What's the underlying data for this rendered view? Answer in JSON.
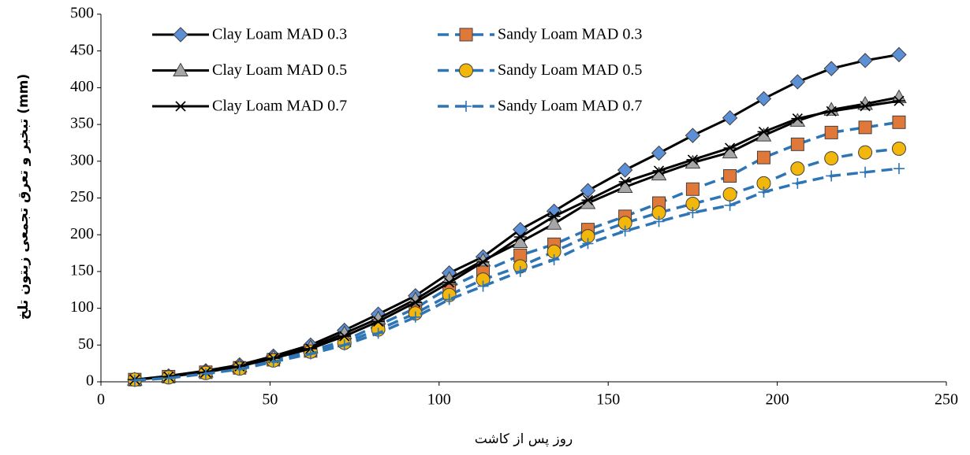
{
  "chart_data": {
    "type": "line",
    "x_label": "روز پس از کاشت",
    "y_label": "تبخیر و تعرق تجمعی زیتون تلخ (mm)",
    "x": [
      10,
      20,
      31,
      41,
      51,
      62,
      72,
      82,
      93,
      103,
      113,
      124,
      134,
      144,
      155,
      165,
      175,
      186,
      196,
      206,
      216,
      226,
      236
    ],
    "xlim": [
      0,
      250
    ],
    "xticks": [
      0,
      50,
      100,
      150,
      200,
      250
    ],
    "ylim": [
      0,
      500
    ],
    "yticks": [
      0,
      50,
      100,
      150,
      200,
      250,
      300,
      350,
      400,
      450,
      500
    ],
    "grid": false,
    "series": [
      {
        "name": "Clay Loam MAD 0.3",
        "color": "#000000",
        "marker": "diamond",
        "marker_color": "#5b8fd6",
        "dash": false,
        "values": [
          3,
          8,
          15,
          23,
          35,
          50,
          70,
          92,
          117,
          148,
          170,
          207,
          232,
          260,
          288,
          311,
          335,
          359,
          385,
          408,
          426,
          437,
          445
        ]
      },
      {
        "name": "Sandy Loam MAD 0.3",
        "color": "#2e75b6",
        "marker": "square",
        "marker_color": "#e0783a",
        "dash": true,
        "values": [
          3,
          7,
          13,
          19,
          30,
          42,
          56,
          77,
          100,
          128,
          150,
          172,
          187,
          207,
          225,
          243,
          262,
          280,
          305,
          323,
          339,
          346,
          353
        ]
      },
      {
        "name": "Clay Loam MAD 0.5",
        "color": "#000000",
        "marker": "triangle",
        "marker_color": "#a6a6a6",
        "dash": false,
        "values": [
          3,
          7,
          14,
          21,
          33,
          47,
          66,
          86,
          112,
          140,
          165,
          190,
          215,
          243,
          265,
          282,
          298,
          312,
          335,
          355,
          370,
          378,
          387
        ]
      },
      {
        "name": "Sandy Loam MAD 0.5",
        "color": "#2e75b6",
        "marker": "circle",
        "marker_color": "#f2b70a",
        "dash": true,
        "values": [
          3,
          6,
          12,
          18,
          29,
          41,
          53,
          71,
          93,
          118,
          139,
          157,
          177,
          198,
          216,
          230,
          242,
          255,
          270,
          290,
          304,
          312,
          317
        ]
      },
      {
        "name": "Clay Loam MAD 0.7",
        "color": "#000000",
        "marker": "star",
        "marker_color": "#000000",
        "dash": false,
        "values": [
          3,
          7,
          13,
          21,
          32,
          45,
          62,
          82,
          108,
          135,
          163,
          197,
          225,
          247,
          272,
          287,
          302,
          318,
          340,
          358,
          368,
          375,
          382
        ]
      },
      {
        "name": "Sandy Loam MAD 0.7",
        "color": "#2e75b6",
        "marker": "plus",
        "marker_color": "#2e75b6",
        "dash": true,
        "values": [
          2,
          5,
          11,
          17,
          27,
          38,
          50,
          66,
          88,
          112,
          130,
          150,
          166,
          188,
          205,
          218,
          230,
          240,
          258,
          270,
          280,
          285,
          290
        ]
      }
    ]
  }
}
